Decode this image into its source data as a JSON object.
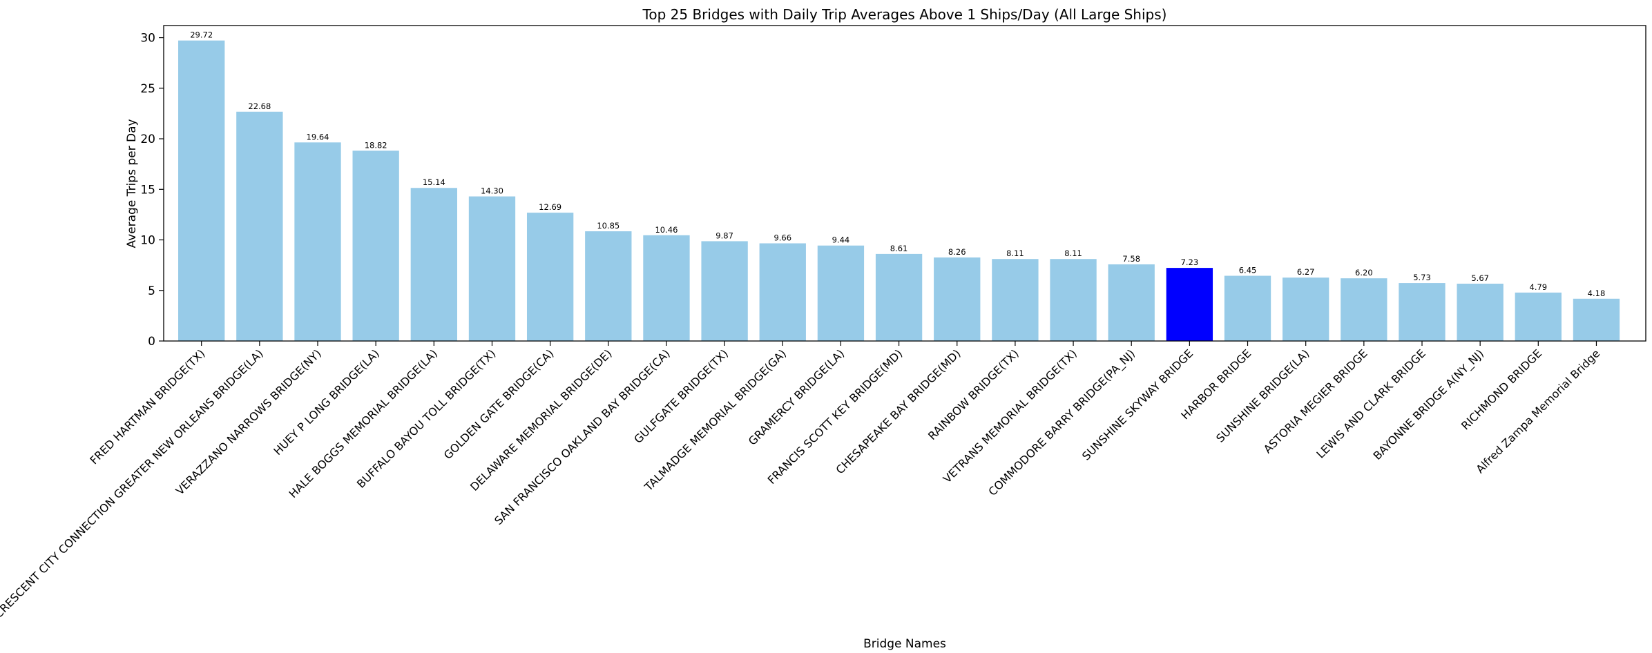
{
  "chart_data": {
    "type": "bar",
    "title": "Top 25 Bridges with Daily Trip Averages Above 1 Ships/Day (All Large Ships)",
    "xlabel": "Bridge Names",
    "ylabel": "Average Trips per Day",
    "ylim": [
      0,
      31.2
    ],
    "yticks": [
      0,
      5,
      10,
      15,
      20,
      25,
      30
    ],
    "grid": false,
    "bar_color": "#97cbe8",
    "highlight_color": "#0000ff",
    "highlight_category": "SUNSHINE SKYWAY BRIDGE",
    "categories": [
      "FRED HARTMAN BRIDGE(TX)",
      "CRESCENT CITY CONNECTION GREATER NEW ORLEANS BRIDGE(LA)",
      "VERAZZANO NARROWS BRIDGE(NY)",
      "HUEY P LONG BRIDGE(LA)",
      "HALE BOGGS MEMORIAL BRIDGE(LA)",
      "BUFFALO BAYOU TOLL BRIDGE(TX)",
      "GOLDEN GATE BRIDGE(CA)",
      "DELAWARE MEMORIAL BRIDGE(DE)",
      "SAN FRANCISCO OAKLAND BAY BRIDGE(CA)",
      "GULFGATE BRIDGE(TX)",
      "TALMADGE MEMORIAL BRIDGE(GA)",
      "GRAMERCY BRIDGE(LA)",
      "FRANCIS SCOTT KEY BRIDGE(MD)",
      "CHESAPEAKE BAY BRIDGE(MD)",
      "RAINBOW BRIDGE(TX)",
      "VETRANS MEMORIAL BRIDGE(TX)",
      "COMMODORE BARRY BRIDGE(PA_NJ)",
      "SUNSHINE SKYWAY BRIDGE",
      "HARBOR BRIDGE",
      "SUNSHINE BRIDGE(LA)",
      "ASTORIA MEGIER BRIDGE",
      "LEWIS AND CLARK BRIDGE",
      "BAYONNE BRIDGE A(NY_NJ)",
      "RICHMOND BRIDGE",
      "Alfred Zampa Memorial Bridge"
    ],
    "values": [
      29.72,
      22.68,
      19.64,
      18.82,
      15.14,
      14.3,
      12.69,
      10.85,
      10.46,
      9.87,
      9.66,
      9.44,
      8.61,
      8.26,
      8.11,
      8.11,
      7.58,
      7.23,
      6.45,
      6.27,
      6.2,
      5.73,
      5.67,
      4.79,
      4.18
    ],
    "value_labels": [
      "29.72",
      "22.68",
      "19.64",
      "18.82",
      "15.14",
      "14.30",
      "12.69",
      "10.85",
      "10.46",
      "9.87",
      "9.66",
      "9.44",
      "8.61",
      "8.26",
      "8.11",
      "8.11",
      "7.58",
      "7.23",
      "6.45",
      "6.27",
      "6.20",
      "5.73",
      "5.67",
      "4.79",
      "4.18"
    ]
  }
}
